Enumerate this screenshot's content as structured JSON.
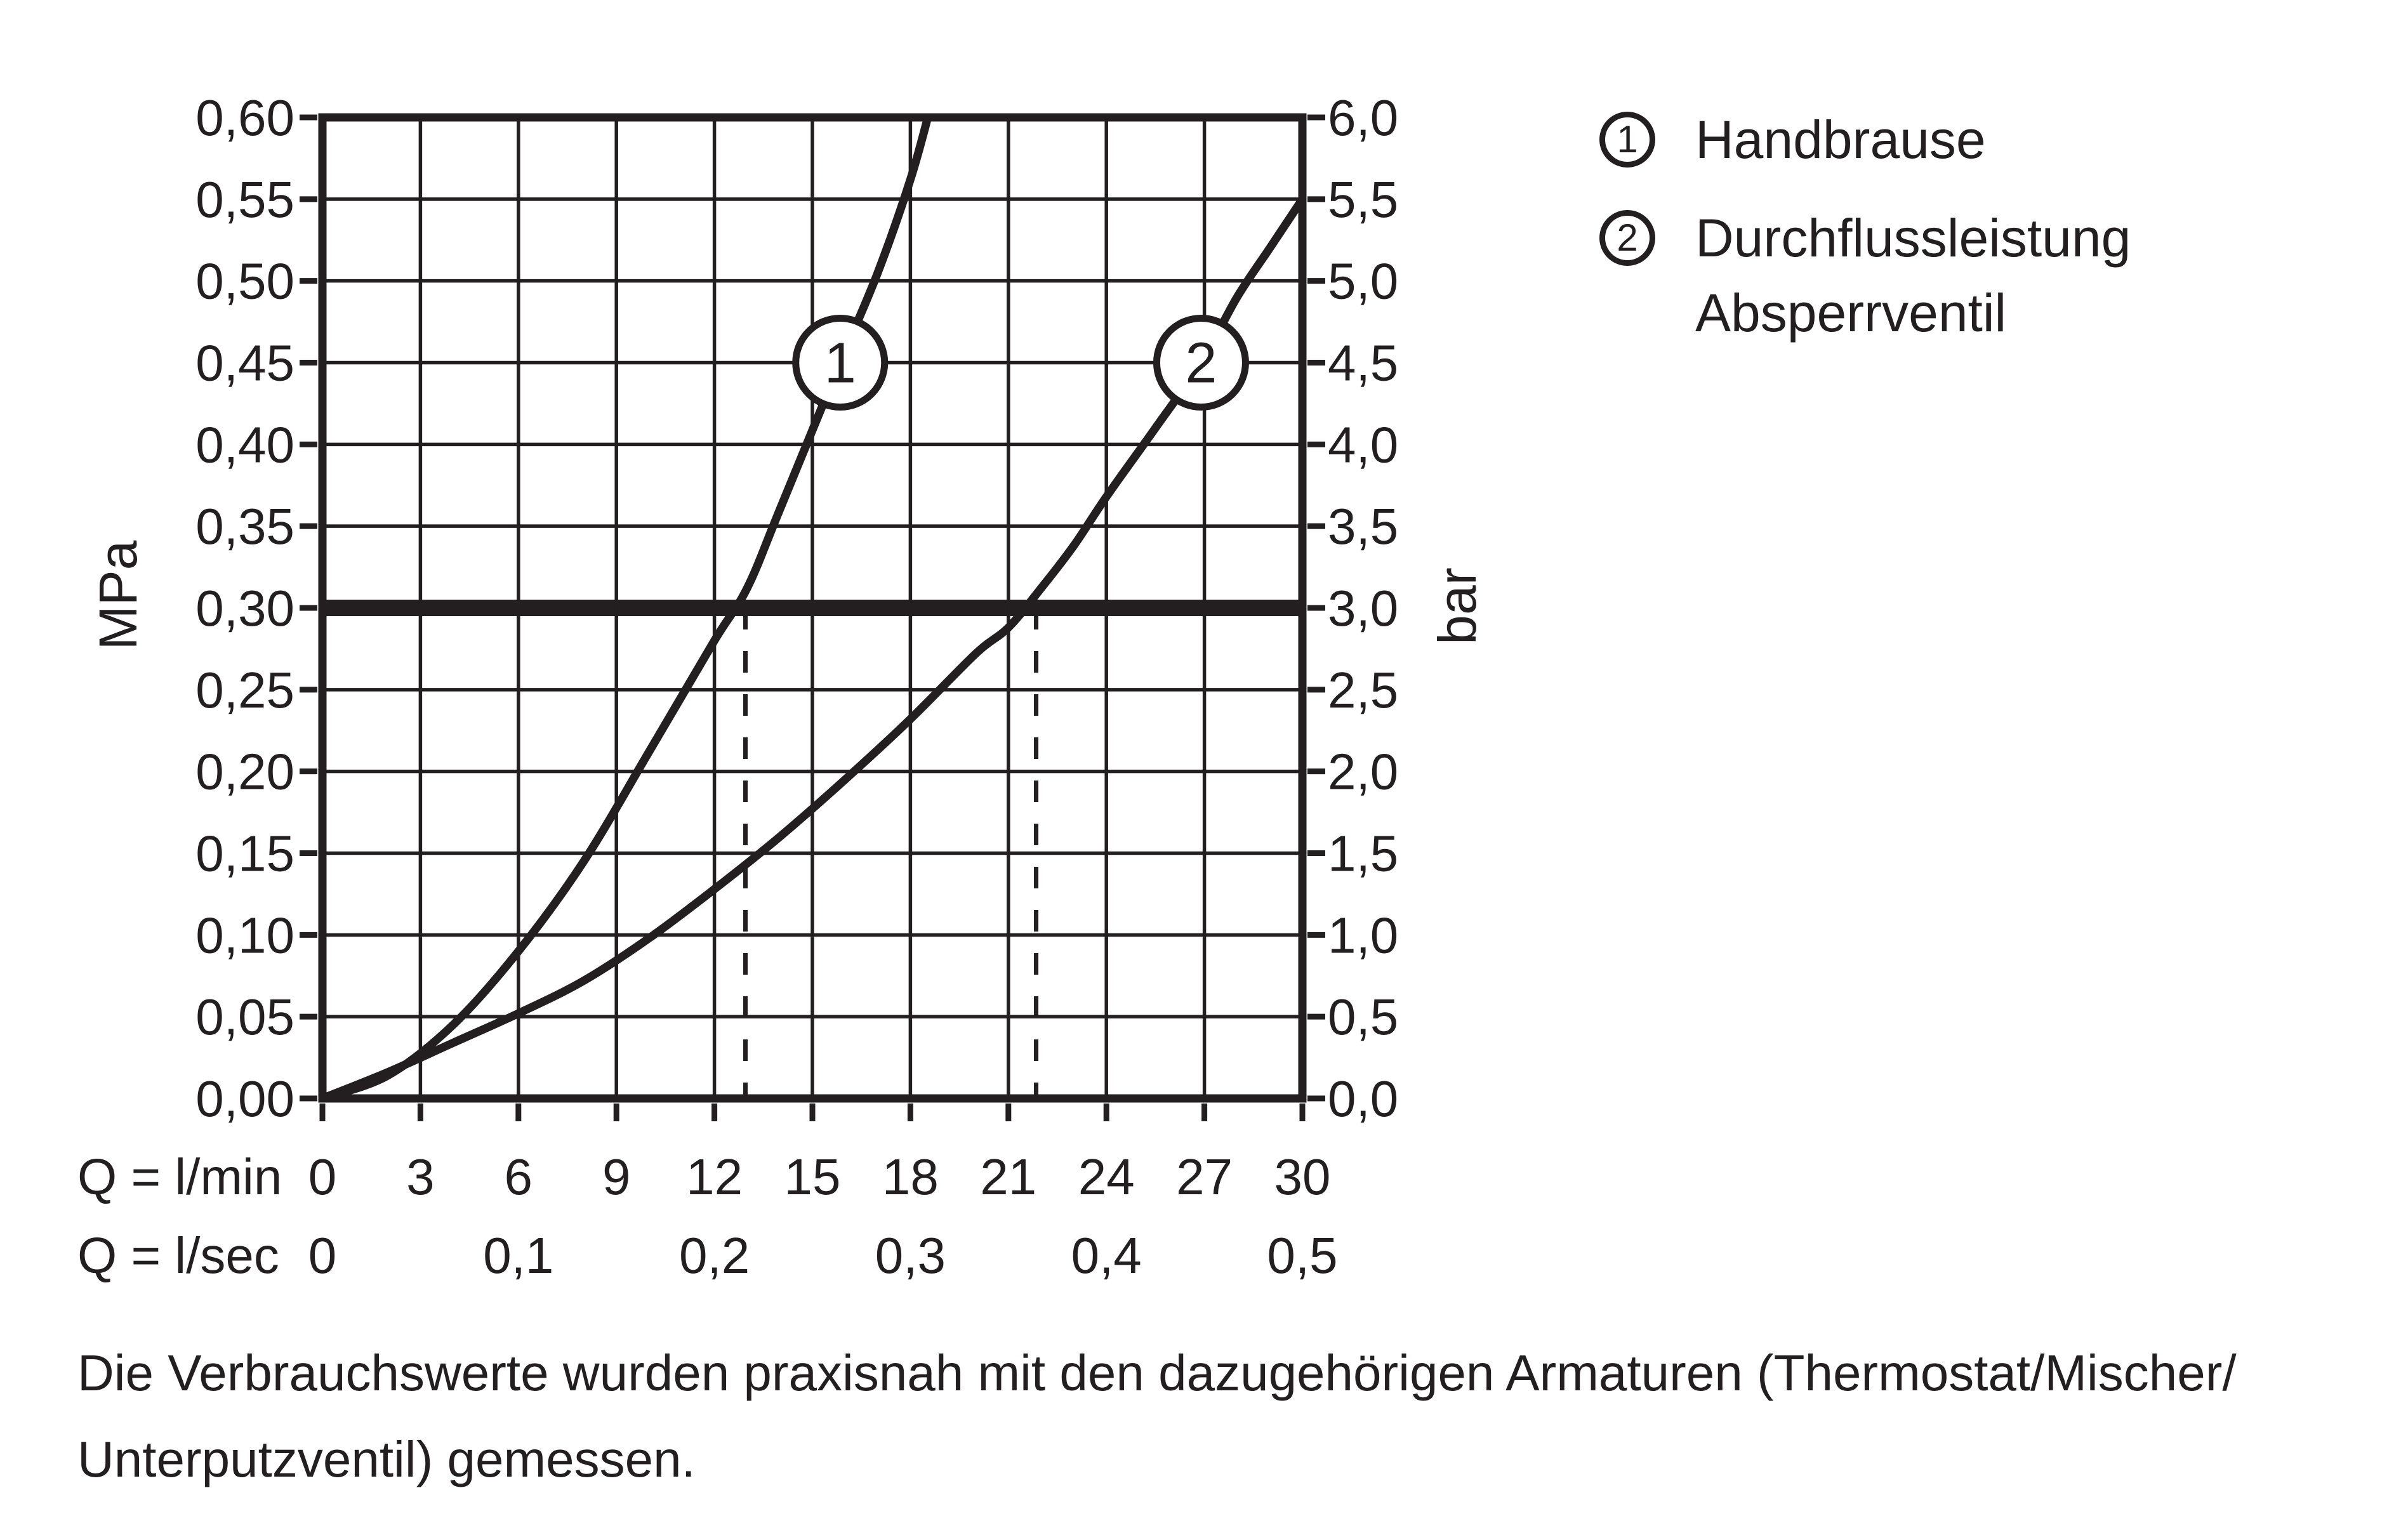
{
  "figure": {
    "background": "#ffffff",
    "ink": "#231f20"
  },
  "legend": {
    "items": [
      {
        "number": "1",
        "label": "Handbrause"
      },
      {
        "number": "2",
        "label_line1": "Durchflussleistung",
        "label_line2": "Absperrventil"
      }
    ]
  },
  "note": {
    "line1": "Die Verbrauchswerte wurden praxisnah mit den dazugehörigen Armaturen (Thermostat/Mischer/",
    "line2": "Unterputzventil) gemessen."
  },
  "chart_data": {
    "type": "line",
    "title": "",
    "grid": true,
    "x_axis": {
      "row1_label": "Q = l/min",
      "row2_label": "Q = l/sec",
      "range_lmin": [
        0,
        30
      ],
      "gridline_step_lmin": 3,
      "lmin_labels": [
        "0",
        "3",
        "6",
        "9",
        "12",
        "15",
        "18",
        "21",
        "24",
        "27",
        "30"
      ],
      "lsec_labels": [
        {
          "q": 0,
          "text": "0"
        },
        {
          "q": 6,
          "text": "0,1"
        },
        {
          "q": 12,
          "text": "0,2"
        },
        {
          "q": 18,
          "text": "0,3"
        },
        {
          "q": 24,
          "text": "0,4"
        },
        {
          "q": 30,
          "text": "0,5"
        }
      ]
    },
    "y_axis_left": {
      "unit": "MPa",
      "range": [
        0,
        0.6
      ],
      "step": 0.05,
      "labels": [
        "0,60",
        "0,55",
        "0,50",
        "0,45",
        "0,40",
        "0,35",
        "0,30",
        "0,25",
        "0,20",
        "0,15",
        "0,10",
        "0,05",
        "0,00"
      ]
    },
    "y_axis_right": {
      "unit": "bar",
      "range": [
        0,
        6.0
      ],
      "step": 0.5,
      "labels": [
        "6,0",
        "5,5",
        "5,0",
        "4,5",
        "4,0",
        "3,5",
        "3,0",
        "2,5",
        "2,0",
        "1,5",
        "1,0",
        "0,5",
        "0,0"
      ]
    },
    "bold_line_bar": 3.0,
    "dashed_guides": {
      "q_values": [
        12.95,
        21.85
      ],
      "from_bar": 3.0,
      "to_bar": 0
    },
    "series": [
      {
        "id": 1,
        "name": "Handbrause",
        "marker": {
          "q": 15.85,
          "bar": 4.5,
          "label": "1"
        },
        "points_q_bar": [
          [
            0,
            0
          ],
          [
            2,
            0.14
          ],
          [
            4,
            0.45
          ],
          [
            6,
            0.9
          ],
          [
            8,
            1.45
          ],
          [
            10,
            2.12
          ],
          [
            12,
            2.8
          ],
          [
            13,
            3.12
          ],
          [
            14,
            3.6
          ],
          [
            15.85,
            4.5
          ],
          [
            17,
            5.05
          ],
          [
            18,
            5.62
          ],
          [
            18.6,
            6.05
          ]
        ]
      },
      {
        "id": 2,
        "name": "Durchflussleistung Absperrventil",
        "marker": {
          "q": 26.9,
          "bar": 4.5,
          "label": "2"
        },
        "points_q_bar": [
          [
            0,
            0
          ],
          [
            2,
            0.16
          ],
          [
            4,
            0.34
          ],
          [
            6,
            0.52
          ],
          [
            8,
            0.72
          ],
          [
            10,
            0.98
          ],
          [
            12,
            1.28
          ],
          [
            14,
            1.6
          ],
          [
            16,
            1.95
          ],
          [
            18,
            2.32
          ],
          [
            20,
            2.72
          ],
          [
            21,
            2.88
          ],
          [
            22,
            3.12
          ],
          [
            23,
            3.38
          ],
          [
            24,
            3.68
          ],
          [
            25.5,
            4.1
          ],
          [
            26.9,
            4.5
          ],
          [
            28,
            4.9
          ],
          [
            29,
            5.2
          ],
          [
            30,
            5.5
          ]
        ]
      }
    ]
  }
}
